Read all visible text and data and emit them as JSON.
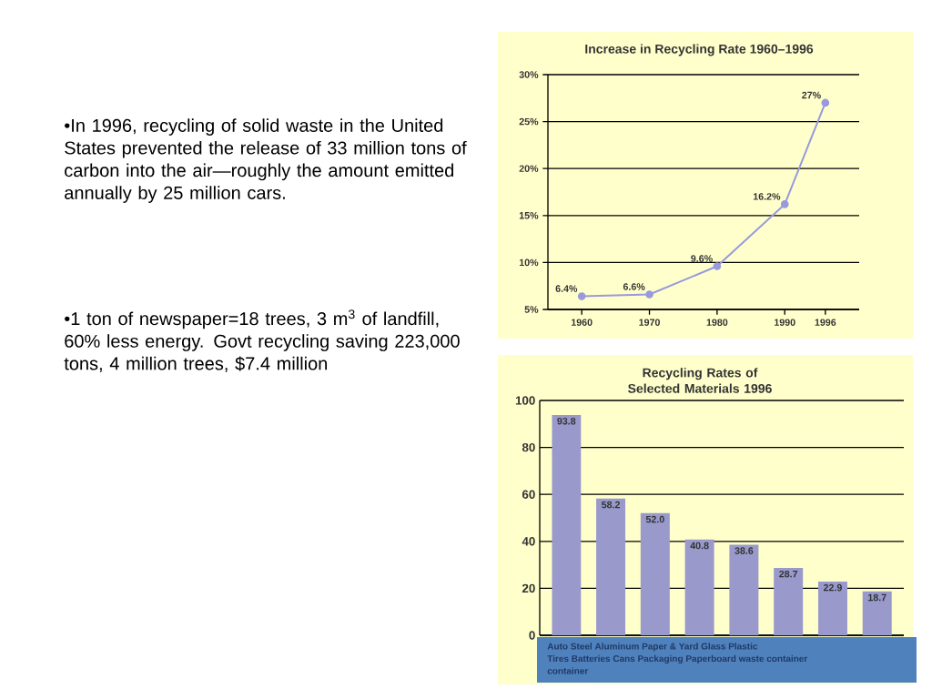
{
  "chart_data": [
    {
      "type": "other",
      "annotations": [
        "•In 1996, recycling of solid waste in the United States prevented the release of 33 million tons of carbon into the air—roughly the amount emitted annually by 25 million cars.",
        "•1 ton of newspaper=18 trees, 3 m$^{3}$ of landfill, 60% less energy. Govt recycling saving 223,000 tons, 4 million trees, $7.4 million"
      ]
    },
    {
      "type": "line",
      "title": "Increase in Recycling Rate 1960–1996",
      "x": [
        1960,
        1970,
        1980,
        1990,
        1996
      ],
      "values": [
        6.4,
        6.6,
        9.6,
        16.2,
        27
      ],
      "value_labels": [
        "6.4%",
        "6.6%",
        "9.6%",
        "16.2%",
        "27%"
      ],
      "color": "#9999dd",
      "marker": "circle",
      "xlim": [
        1955,
        2001
      ],
      "xticks": [
        1960,
        1970,
        1980,
        1990,
        1996
      ],
      "ylim": [
        5,
        30
      ],
      "yticks": [
        {
          "value": 5,
          "label": "5%"
        },
        {
          "value": 10,
          "label": "10%"
        },
        {
          "value": 15,
          "label": "15%"
        },
        {
          "value": 20,
          "label": "20%"
        },
        {
          "value": 25,
          "label": "25%"
        },
        {
          "value": 30,
          "label": "30%"
        }
      ],
      "grid": "y"
    },
    {
      "type": "bar",
      "title": "Recycling Rates of Selected Materials 1996",
      "categories": [
        null,
        null,
        null,
        null,
        null,
        null,
        null,
        null
      ],
      "values": [
        93.8,
        58.2,
        52.0,
        40.8,
        38.6,
        28.7,
        22.9,
        18.7
      ],
      "value_labels": [
        "93.8",
        "58.2",
        "52.0",
        "40.8",
        "38.6",
        "28.7",
        "22.9",
        "18.7"
      ],
      "color": "#9999cc",
      "ylim": [
        0,
        100
      ],
      "yticks": [
        0,
        20,
        40,
        60,
        80,
        100
      ],
      "grid": "y",
      "annotations": [
        "Auto      Steel      Aluminum    Paper &     Yard        Glass         Plastic",
        "Tires Batteries  Cans     Packaging      Paperboard waste   container",
        "container"
      ]
    }
  ]
}
